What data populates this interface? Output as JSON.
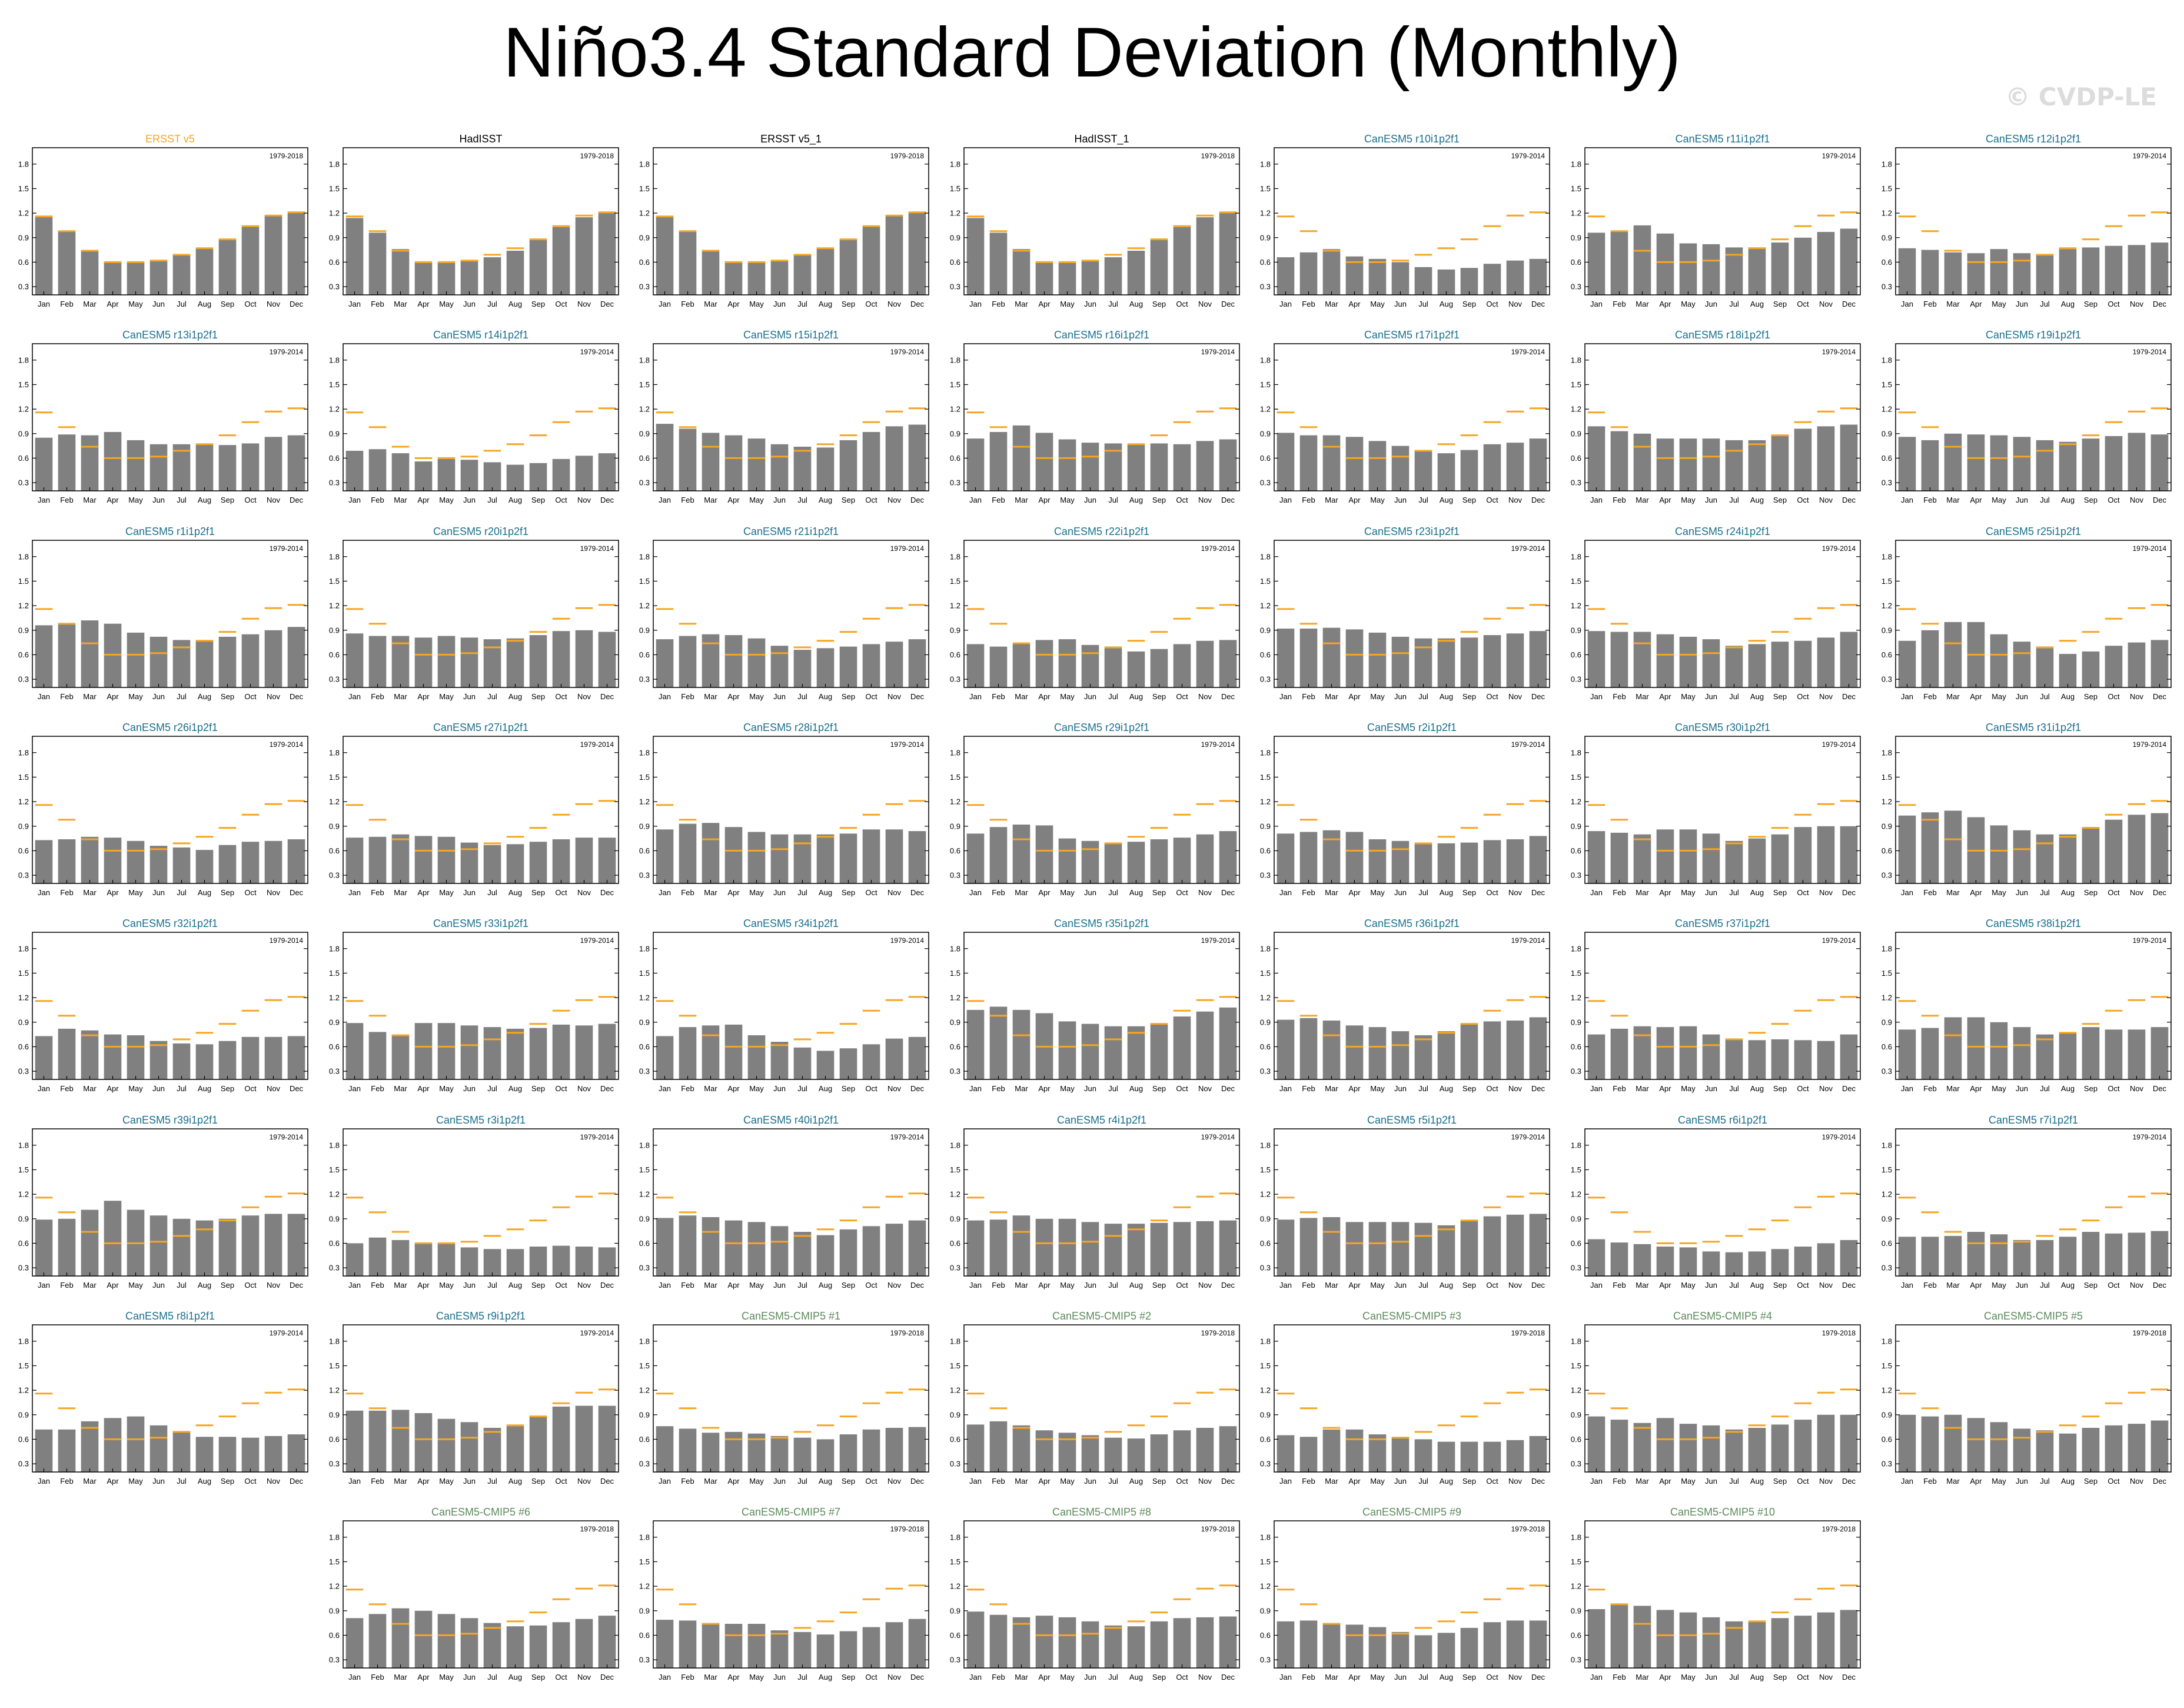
{
  "title": "Niño3.4 Standard Deviation (Monthly)",
  "watermark": "© CVDP-LE",
  "colors": {
    "bar": "#808080",
    "reference_line": "#f5a623",
    "observed_title": "#f5a623",
    "obs_title": "#000000",
    "model_title": "#1a6f8c",
    "cmip5_title": "#5c8a5c"
  },
  "chart_data": {
    "type": "bar",
    "categories": [
      "Jan",
      "Feb",
      "Mar",
      "Apr",
      "May",
      "Jun",
      "Jul",
      "Aug",
      "Sep",
      "Oct",
      "Nov",
      "Dec"
    ],
    "yticks": [
      0.3,
      0.6,
      0.9,
      1.2,
      1.5,
      1.8
    ],
    "ylim": [
      0.2,
      2.0
    ],
    "reference_series": "ERSST v5",
    "reference_values": [
      1.16,
      0.98,
      0.74,
      0.6,
      0.6,
      0.62,
      0.69,
      0.77,
      0.88,
      1.04,
      1.17,
      1.21
    ],
    "panels": [
      {
        "title": "ERSST v5",
        "group": "observed",
        "period": "1979-2018",
        "values": [
          1.16,
          0.98,
          0.74,
          0.6,
          0.6,
          0.62,
          0.69,
          0.77,
          0.88,
          1.04,
          1.17,
          1.21
        ]
      },
      {
        "title": "HadISST",
        "group": "obs",
        "period": "1979-2018",
        "values": [
          1.14,
          0.96,
          0.76,
          0.59,
          0.59,
          0.61,
          0.66,
          0.74,
          0.87,
          1.03,
          1.15,
          1.2
        ]
      },
      {
        "title": "ERSST v5_1",
        "group": "obs",
        "period": "1979-2018",
        "values": [
          1.16,
          0.98,
          0.74,
          0.6,
          0.6,
          0.62,
          0.69,
          0.77,
          0.88,
          1.04,
          1.17,
          1.21
        ]
      },
      {
        "title": "HadISST_1",
        "group": "obs",
        "period": "1979-2018",
        "values": [
          1.14,
          0.96,
          0.76,
          0.59,
          0.59,
          0.61,
          0.66,
          0.74,
          0.87,
          1.03,
          1.15,
          1.2
        ]
      },
      {
        "title": "CanESM5 r10i1p2f1",
        "group": "model",
        "period": "1979-2014",
        "values": [
          0.66,
          0.72,
          0.76,
          0.67,
          0.64,
          0.6,
          0.54,
          0.51,
          0.53,
          0.58,
          0.62,
          0.64
        ]
      },
      {
        "title": "CanESM5 r11i1p2f1",
        "group": "model",
        "period": "1979-2014",
        "values": [
          0.96,
          0.98,
          1.05,
          0.95,
          0.83,
          0.82,
          0.78,
          0.78,
          0.84,
          0.9,
          0.97,
          1.01
        ]
      },
      {
        "title": "CanESM5 r12i1p2f1",
        "group": "model",
        "period": "1979-2014",
        "values": [
          0.77,
          0.75,
          0.72,
          0.71,
          0.76,
          0.71,
          0.7,
          0.76,
          0.78,
          0.8,
          0.81,
          0.84
        ]
      },
      {
        "title": "CanESM5 r13i1p2f1",
        "group": "model",
        "period": "1979-2014",
        "values": [
          0.85,
          0.89,
          0.88,
          0.92,
          0.82,
          0.77,
          0.77,
          0.77,
          0.76,
          0.78,
          0.86,
          0.88
        ]
      },
      {
        "title": "CanESM5 r14i1p2f1",
        "group": "model",
        "period": "1979-2014",
        "values": [
          0.69,
          0.71,
          0.66,
          0.56,
          0.59,
          0.58,
          0.55,
          0.52,
          0.54,
          0.59,
          0.63,
          0.66
        ]
      },
      {
        "title": "CanESM5 r15i1p2f1",
        "group": "model",
        "period": "1979-2014",
        "values": [
          1.02,
          0.96,
          0.91,
          0.88,
          0.84,
          0.77,
          0.74,
          0.73,
          0.82,
          0.92,
          0.99,
          1.01
        ]
      },
      {
        "title": "CanESM5 r16i1p2f1",
        "group": "model",
        "period": "1979-2014",
        "values": [
          0.84,
          0.92,
          1.0,
          0.91,
          0.83,
          0.79,
          0.78,
          0.77,
          0.78,
          0.77,
          0.81,
          0.83
        ]
      },
      {
        "title": "CanESM5 r17i1p2f1",
        "group": "model",
        "period": "1979-2014",
        "values": [
          0.91,
          0.88,
          0.88,
          0.86,
          0.81,
          0.75,
          0.69,
          0.66,
          0.7,
          0.77,
          0.79,
          0.84
        ]
      },
      {
        "title": "CanESM5 r18i1p2f1",
        "group": "model",
        "period": "1979-2014",
        "values": [
          0.99,
          0.93,
          0.9,
          0.84,
          0.84,
          0.84,
          0.82,
          0.82,
          0.88,
          0.96,
          0.99,
          1.01
        ]
      },
      {
        "title": "CanESM5 r19i1p2f1",
        "group": "model",
        "period": "1979-2014",
        "values": [
          0.86,
          0.82,
          0.9,
          0.89,
          0.88,
          0.86,
          0.82,
          0.8,
          0.84,
          0.87,
          0.91,
          0.89
        ]
      },
      {
        "title": "CanESM5 r1i1p2f1",
        "group": "model",
        "period": "1979-2014",
        "values": [
          0.96,
          0.97,
          1.02,
          0.98,
          0.87,
          0.82,
          0.78,
          0.78,
          0.82,
          0.85,
          0.9,
          0.94
        ]
      },
      {
        "title": "CanESM5 r20i1p2f1",
        "group": "model",
        "period": "1979-2014",
        "values": [
          0.86,
          0.83,
          0.83,
          0.81,
          0.83,
          0.81,
          0.79,
          0.8,
          0.84,
          0.89,
          0.9,
          0.88
        ]
      },
      {
        "title": "CanESM5 r21i1p2f1",
        "group": "model",
        "period": "1979-2014",
        "values": [
          0.79,
          0.83,
          0.85,
          0.84,
          0.8,
          0.71,
          0.66,
          0.68,
          0.7,
          0.73,
          0.76,
          0.79
        ]
      },
      {
        "title": "CanESM5 r22i1p2f1",
        "group": "model",
        "period": "1979-2014",
        "values": [
          0.73,
          0.7,
          0.73,
          0.78,
          0.79,
          0.72,
          0.68,
          0.64,
          0.67,
          0.73,
          0.77,
          0.78
        ]
      },
      {
        "title": "CanESM5 r23i1p2f1",
        "group": "model",
        "period": "1979-2014",
        "values": [
          0.92,
          0.92,
          0.93,
          0.91,
          0.87,
          0.82,
          0.8,
          0.8,
          0.81,
          0.84,
          0.86,
          0.89
        ]
      },
      {
        "title": "CanESM5 r24i1p2f1",
        "group": "model",
        "period": "1979-2014",
        "values": [
          0.89,
          0.88,
          0.88,
          0.85,
          0.82,
          0.79,
          0.71,
          0.73,
          0.76,
          0.77,
          0.81,
          0.88
        ]
      },
      {
        "title": "CanESM5 r25i1p2f1",
        "group": "model",
        "period": "1979-2014",
        "values": [
          0.77,
          0.9,
          1.0,
          1.0,
          0.85,
          0.76,
          0.68,
          0.61,
          0.64,
          0.71,
          0.75,
          0.78
        ]
      },
      {
        "title": "CanESM5 r26i1p2f1",
        "group": "model",
        "period": "1979-2014",
        "values": [
          0.73,
          0.74,
          0.77,
          0.76,
          0.72,
          0.66,
          0.64,
          0.61,
          0.67,
          0.71,
          0.72,
          0.74
        ]
      },
      {
        "title": "CanESM5 r27i1p2f1",
        "group": "model",
        "period": "1979-2014",
        "values": [
          0.76,
          0.77,
          0.8,
          0.78,
          0.77,
          0.7,
          0.67,
          0.68,
          0.71,
          0.74,
          0.76,
          0.76
        ]
      },
      {
        "title": "CanESM5 r28i1p2f1",
        "group": "model",
        "period": "1979-2014",
        "values": [
          0.86,
          0.93,
          0.94,
          0.89,
          0.83,
          0.8,
          0.8,
          0.8,
          0.81,
          0.86,
          0.86,
          0.84
        ]
      },
      {
        "title": "CanESM5 r29i1p2f1",
        "group": "model",
        "period": "1979-2014",
        "values": [
          0.81,
          0.89,
          0.92,
          0.91,
          0.75,
          0.72,
          0.69,
          0.71,
          0.74,
          0.76,
          0.8,
          0.84
        ]
      },
      {
        "title": "CanESM5 r2i1p2f1",
        "group": "model",
        "period": "1979-2014",
        "values": [
          0.81,
          0.83,
          0.85,
          0.83,
          0.74,
          0.72,
          0.68,
          0.69,
          0.7,
          0.73,
          0.74,
          0.78
        ]
      },
      {
        "title": "CanESM5 r30i1p2f1",
        "group": "model",
        "period": "1979-2014",
        "values": [
          0.84,
          0.82,
          0.8,
          0.86,
          0.86,
          0.81,
          0.72,
          0.75,
          0.8,
          0.89,
          0.9,
          0.9
        ]
      },
      {
        "title": "CanESM5 r31i1p2f1",
        "group": "model",
        "period": "1979-2014",
        "values": [
          1.03,
          1.07,
          1.09,
          1.01,
          0.91,
          0.85,
          0.8,
          0.8,
          0.89,
          0.98,
          1.04,
          1.06
        ]
      },
      {
        "title": "CanESM5 r32i1p2f1",
        "group": "model",
        "period": "1979-2014",
        "values": [
          0.73,
          0.82,
          0.8,
          0.75,
          0.74,
          0.67,
          0.64,
          0.63,
          0.67,
          0.72,
          0.72,
          0.73
        ]
      },
      {
        "title": "CanESM5 r33i1p2f1",
        "group": "model",
        "period": "1979-2014",
        "values": [
          0.89,
          0.78,
          0.75,
          0.89,
          0.89,
          0.86,
          0.84,
          0.82,
          0.83,
          0.87,
          0.86,
          0.88
        ]
      },
      {
        "title": "CanESM5 r34i1p2f1",
        "group": "model",
        "period": "1979-2014",
        "values": [
          0.73,
          0.84,
          0.86,
          0.87,
          0.74,
          0.66,
          0.59,
          0.55,
          0.58,
          0.63,
          0.7,
          0.72
        ]
      },
      {
        "title": "CanESM5 r35i1p2f1",
        "group": "model",
        "period": "1979-2014",
        "values": [
          1.05,
          1.09,
          1.05,
          1.01,
          0.91,
          0.88,
          0.85,
          0.85,
          0.88,
          0.97,
          1.03,
          1.08
        ]
      },
      {
        "title": "CanESM5 r36i1p2f1",
        "group": "model",
        "period": "1979-2014",
        "values": [
          0.93,
          0.95,
          0.92,
          0.86,
          0.84,
          0.79,
          0.74,
          0.79,
          0.87,
          0.91,
          0.92,
          0.96
        ]
      },
      {
        "title": "CanESM5 r37i1p2f1",
        "group": "model",
        "period": "1979-2014",
        "values": [
          0.75,
          0.82,
          0.85,
          0.84,
          0.85,
          0.75,
          0.69,
          0.68,
          0.69,
          0.68,
          0.67,
          0.75
        ]
      },
      {
        "title": "CanESM5 r38i1p2f1",
        "group": "model",
        "period": "1979-2014",
        "values": [
          0.81,
          0.83,
          0.96,
          0.96,
          0.9,
          0.84,
          0.75,
          0.77,
          0.84,
          0.81,
          0.81,
          0.84
        ]
      },
      {
        "title": "CanESM5 r39i1p2f1",
        "group": "model",
        "period": "1979-2014",
        "values": [
          0.89,
          0.9,
          1.01,
          1.12,
          1.01,
          0.94,
          0.9,
          0.88,
          0.9,
          0.94,
          0.96,
          0.96
        ]
      },
      {
        "title": "CanESM5 r3i1p2f1",
        "group": "model",
        "period": "1979-2014",
        "values": [
          0.6,
          0.67,
          0.64,
          0.6,
          0.6,
          0.55,
          0.53,
          0.53,
          0.56,
          0.57,
          0.56,
          0.55
        ]
      },
      {
        "title": "CanESM5 r40i1p2f1",
        "group": "model",
        "period": "1979-2014",
        "values": [
          0.91,
          0.94,
          0.92,
          0.88,
          0.86,
          0.81,
          0.74,
          0.7,
          0.77,
          0.81,
          0.84,
          0.88
        ]
      },
      {
        "title": "CanESM5 r4i1p2f1",
        "group": "model",
        "period": "1979-2014",
        "values": [
          0.88,
          0.89,
          0.94,
          0.9,
          0.9,
          0.86,
          0.84,
          0.84,
          0.85,
          0.86,
          0.87,
          0.88
        ]
      },
      {
        "title": "CanESM5 r5i1p2f1",
        "group": "model",
        "period": "1979-2014",
        "values": [
          0.89,
          0.91,
          0.92,
          0.86,
          0.86,
          0.86,
          0.85,
          0.82,
          0.88,
          0.93,
          0.95,
          0.96
        ]
      },
      {
        "title": "CanESM5 r6i1p2f1",
        "group": "model",
        "period": "1979-2014",
        "values": [
          0.65,
          0.61,
          0.59,
          0.56,
          0.55,
          0.5,
          0.49,
          0.5,
          0.53,
          0.56,
          0.6,
          0.64
        ]
      },
      {
        "title": "CanESM5 r7i1p2f1",
        "group": "model",
        "period": "1979-2014",
        "values": [
          0.68,
          0.68,
          0.69,
          0.74,
          0.71,
          0.64,
          0.64,
          0.68,
          0.74,
          0.72,
          0.73,
          0.75
        ]
      },
      {
        "title": "CanESM5 r8i1p2f1",
        "group": "model",
        "period": "1979-2014",
        "values": [
          0.72,
          0.72,
          0.82,
          0.86,
          0.88,
          0.77,
          0.69,
          0.63,
          0.63,
          0.62,
          0.64,
          0.66
        ]
      },
      {
        "title": "CanESM5 r9i1p2f1",
        "group": "model",
        "period": "1979-2014",
        "values": [
          0.95,
          0.95,
          0.96,
          0.92,
          0.85,
          0.81,
          0.74,
          0.76,
          0.89,
          1.0,
          1.01,
          1.01
        ]
      },
      {
        "title": "CanESM5-CMIP5 #1",
        "group": "cmip5",
        "period": "1979-2018",
        "values": [
          0.76,
          0.73,
          0.68,
          0.69,
          0.67,
          0.64,
          0.62,
          0.6,
          0.66,
          0.72,
          0.74,
          0.75
        ]
      },
      {
        "title": "CanESM5-CMIP5 #2",
        "group": "cmip5",
        "period": "1979-2018",
        "values": [
          0.78,
          0.82,
          0.77,
          0.71,
          0.68,
          0.65,
          0.62,
          0.61,
          0.66,
          0.71,
          0.74,
          0.76
        ]
      },
      {
        "title": "CanESM5-CMIP5 #3",
        "group": "cmip5",
        "period": "1979-2018",
        "values": [
          0.65,
          0.63,
          0.72,
          0.72,
          0.66,
          0.63,
          0.6,
          0.57,
          0.57,
          0.57,
          0.59,
          0.64
        ]
      },
      {
        "title": "CanESM5-CMIP5 #4",
        "group": "cmip5",
        "period": "1979-2018",
        "values": [
          0.88,
          0.84,
          0.8,
          0.86,
          0.79,
          0.77,
          0.72,
          0.74,
          0.78,
          0.84,
          0.9,
          0.9
        ]
      },
      {
        "title": "CanESM5-CMIP5 #5",
        "group": "cmip5",
        "period": "1979-2018",
        "values": [
          0.9,
          0.88,
          0.9,
          0.86,
          0.81,
          0.73,
          0.71,
          0.67,
          0.74,
          0.77,
          0.79,
          0.83
        ]
      },
      {
        "title": "CanESM5-CMIP5 #6",
        "group": "cmip5",
        "period": "1979-2018",
        "values": [
          0.81,
          0.86,
          0.93,
          0.9,
          0.86,
          0.81,
          0.75,
          0.71,
          0.72,
          0.76,
          0.8,
          0.84
        ]
      },
      {
        "title": "CanESM5-CMIP5 #7",
        "group": "cmip5",
        "period": "1979-2018",
        "values": [
          0.79,
          0.78,
          0.75,
          0.74,
          0.74,
          0.66,
          0.64,
          0.61,
          0.65,
          0.7,
          0.76,
          0.8
        ]
      },
      {
        "title": "CanESM5-CMIP5 #8",
        "group": "cmip5",
        "period": "1979-2018",
        "values": [
          0.89,
          0.85,
          0.82,
          0.84,
          0.82,
          0.77,
          0.72,
          0.71,
          0.77,
          0.81,
          0.82,
          0.83
        ]
      },
      {
        "title": "CanESM5-CMIP5 #9",
        "group": "cmip5",
        "period": "1979-2018",
        "values": [
          0.77,
          0.78,
          0.75,
          0.73,
          0.7,
          0.64,
          0.6,
          0.63,
          0.69,
          0.76,
          0.78,
          0.78
        ]
      },
      {
        "title": "CanESM5-CMIP5 #10",
        "group": "cmip5",
        "period": "1979-2018",
        "values": [
          0.92,
          0.98,
          0.96,
          0.91,
          0.88,
          0.82,
          0.77,
          0.77,
          0.81,
          0.84,
          0.88,
          0.91
        ]
      }
    ]
  }
}
